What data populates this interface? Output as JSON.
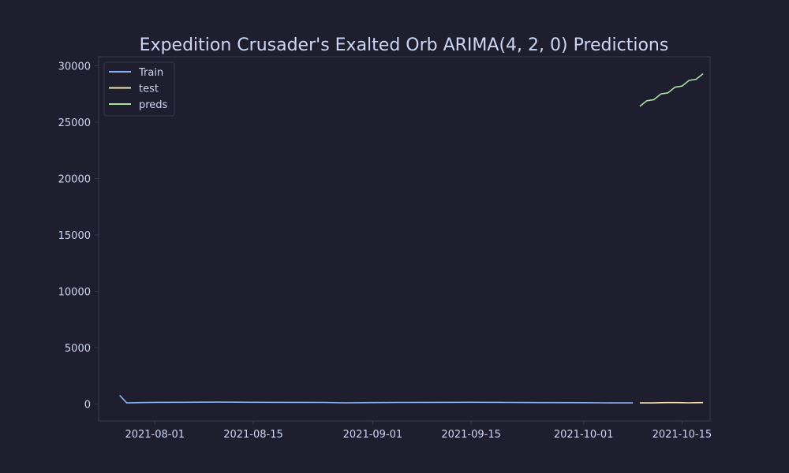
{
  "chart_data": {
    "type": "line",
    "title": "Expedition Crusader's Exalted Orb ARIMA(4, 2, 0) Predictions",
    "xlabel": "",
    "ylabel": "",
    "x_range": [
      "2021-07-24",
      "2021-10-19"
    ],
    "ylim": [
      -1500,
      30800
    ],
    "y_ticks": [
      0,
      5000,
      10000,
      15000,
      20000,
      25000,
      30000
    ],
    "x_ticks": [
      "2021-08-01",
      "2021-08-15",
      "2021-09-01",
      "2021-09-15",
      "2021-10-01",
      "2021-10-15"
    ],
    "grid": false,
    "legend_position": "top-left",
    "series": [
      {
        "name": "Train",
        "color": "#89b4fa",
        "points": [
          [
            "2021-07-27",
            780
          ],
          [
            "2021-07-28",
            100
          ],
          [
            "2021-07-30",
            130
          ],
          [
            "2021-08-01",
            150
          ],
          [
            "2021-08-05",
            160
          ],
          [
            "2021-08-10",
            170
          ],
          [
            "2021-08-15",
            160
          ],
          [
            "2021-08-20",
            150
          ],
          [
            "2021-08-25",
            140
          ],
          [
            "2021-08-28",
            110
          ],
          [
            "2021-09-01",
            130
          ],
          [
            "2021-09-05",
            140
          ],
          [
            "2021-09-10",
            150
          ],
          [
            "2021-09-15",
            160
          ],
          [
            "2021-09-20",
            140
          ],
          [
            "2021-09-25",
            130
          ],
          [
            "2021-10-01",
            120
          ],
          [
            "2021-10-05",
            100
          ],
          [
            "2021-10-08",
            100
          ]
        ]
      },
      {
        "name": "test",
        "color": "#f9e2af",
        "points": [
          [
            "2021-10-09",
            100
          ],
          [
            "2021-10-10",
            110
          ],
          [
            "2021-10-11",
            100
          ],
          [
            "2021-10-12",
            120
          ],
          [
            "2021-10-13",
            130
          ],
          [
            "2021-10-14",
            130
          ],
          [
            "2021-10-15",
            120
          ],
          [
            "2021-10-16",
            110
          ],
          [
            "2021-10-17",
            120
          ],
          [
            "2021-10-18",
            130
          ]
        ]
      },
      {
        "name": "preds",
        "color": "#a6e3a1",
        "points": [
          [
            "2021-10-09",
            26400
          ],
          [
            "2021-10-10",
            26900
          ],
          [
            "2021-10-11",
            27000
          ],
          [
            "2021-10-12",
            27500
          ],
          [
            "2021-10-13",
            27600
          ],
          [
            "2021-10-14",
            28100
          ],
          [
            "2021-10-15",
            28200
          ],
          [
            "2021-10-16",
            28700
          ],
          [
            "2021-10-17",
            28800
          ],
          [
            "2021-10-18",
            29300
          ]
        ]
      }
    ]
  }
}
